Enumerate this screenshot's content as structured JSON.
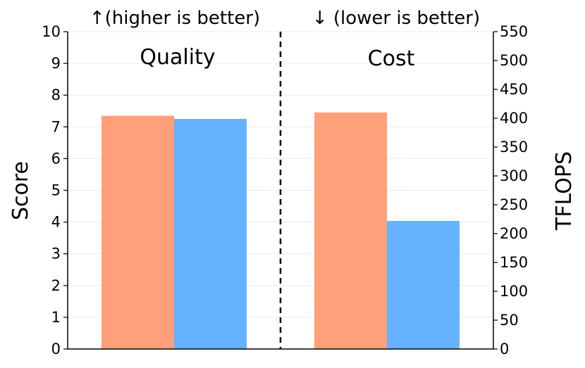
{
  "chart_data": {
    "type": "bar",
    "title": "",
    "headers": {
      "left": "↑(higher is better)",
      "right": "↓ (lower is better)"
    },
    "panels": [
      {
        "label": "Quality",
        "axis": "left"
      },
      {
        "label": "Cost",
        "axis": "right"
      }
    ],
    "ylabel_left": "Score",
    "ylabel_right": "TFLOPS",
    "ylim_left": [
      0,
      10
    ],
    "ylim_right": [
      0,
      550
    ],
    "yticks_left": [
      "0",
      "1",
      "2",
      "3",
      "4",
      "5",
      "6",
      "7",
      "8",
      "9",
      "10"
    ],
    "yticks_right": [
      "0",
      "50",
      "100",
      "150",
      "200",
      "250",
      "300",
      "350",
      "400",
      "450",
      "500",
      "550"
    ],
    "series": [
      {
        "color": "#FFA07A",
        "values": [
          7.35,
          410
        ]
      },
      {
        "color": "#66B2FF",
        "values": [
          7.25,
          222
        ]
      }
    ],
    "grid": "horizontal, light",
    "divider": "dashed vertical line between panels"
  }
}
